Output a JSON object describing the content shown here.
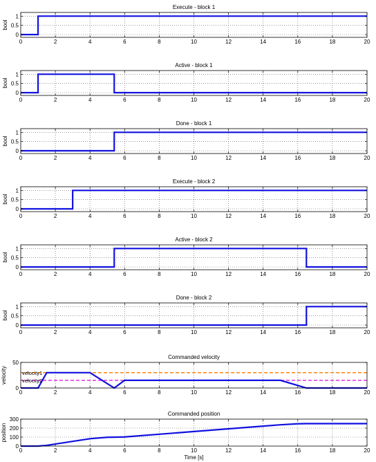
{
  "chart_data": [
    {
      "type": "line",
      "title": "Execute - block 1",
      "ylabel": "bool",
      "xlim": [
        0,
        20
      ],
      "ylim": [
        -0.15,
        1.2
      ],
      "xticks": [
        0,
        2,
        4,
        6,
        8,
        10,
        12,
        14,
        16,
        18,
        20
      ],
      "yticks": [
        0,
        0.5,
        1
      ],
      "ytick_labels": [
        "0",
        "0.5",
        "1"
      ],
      "grid": true,
      "series": [
        {
          "color": "#1010e0",
          "x": [
            0,
            1,
            1,
            20
          ],
          "y": [
            0,
            0,
            1,
            1
          ]
        }
      ]
    },
    {
      "type": "line",
      "title": "Active - block 1",
      "ylabel": "bool",
      "xlim": [
        0,
        20
      ],
      "ylim": [
        -0.15,
        1.2
      ],
      "xticks": [
        0,
        2,
        4,
        6,
        8,
        10,
        12,
        14,
        16,
        18,
        20
      ],
      "yticks": [
        0,
        0.5,
        1
      ],
      "ytick_labels": [
        "0",
        "0.5",
        "1"
      ],
      "grid": true,
      "series": [
        {
          "color": "#1010e0",
          "x": [
            0,
            1,
            1,
            5.4,
            5.4,
            20
          ],
          "y": [
            0,
            0,
            1,
            1,
            0,
            0
          ]
        }
      ]
    },
    {
      "type": "line",
      "title": "Done - block 1",
      "ylabel": "bool",
      "xlim": [
        0,
        20
      ],
      "ylim": [
        -0.15,
        1.2
      ],
      "xticks": [
        0,
        2,
        4,
        6,
        8,
        10,
        12,
        14,
        16,
        18,
        20
      ],
      "yticks": [
        0,
        0.5,
        1
      ],
      "ytick_labels": [
        "0",
        "0.5",
        "1"
      ],
      "grid": true,
      "series": [
        {
          "color": "#1010e0",
          "x": [
            0,
            5.4,
            5.4,
            20
          ],
          "y": [
            0,
            0,
            1,
            1
          ]
        }
      ]
    },
    {
      "type": "line",
      "title": "Execute - block 2",
      "ylabel": "bool",
      "xlim": [
        0,
        20
      ],
      "ylim": [
        -0.15,
        1.2
      ],
      "xticks": [
        0,
        2,
        4,
        6,
        8,
        10,
        12,
        14,
        16,
        18,
        20
      ],
      "yticks": [
        0,
        0.5,
        1
      ],
      "ytick_labels": [
        "0",
        "0.5",
        "1"
      ],
      "grid": true,
      "series": [
        {
          "color": "#1010e0",
          "x": [
            0,
            3,
            3,
            20
          ],
          "y": [
            0,
            0,
            1,
            1
          ]
        }
      ]
    },
    {
      "type": "line",
      "title": "Active - block 2",
      "ylabel": "bool",
      "xlim": [
        0,
        20
      ],
      "ylim": [
        -0.15,
        1.2
      ],
      "xticks": [
        0,
        2,
        4,
        6,
        8,
        10,
        12,
        14,
        16,
        18,
        20
      ],
      "yticks": [
        0,
        0.5,
        1
      ],
      "ytick_labels": [
        "0",
        "0.5",
        "1"
      ],
      "grid": true,
      "series": [
        {
          "color": "#1010e0",
          "x": [
            0,
            5.4,
            5.4,
            16.5,
            16.5,
            20
          ],
          "y": [
            0,
            0,
            1,
            1,
            0,
            0
          ]
        }
      ]
    },
    {
      "type": "line",
      "title": "Done - block 2",
      "ylabel": "bool",
      "xlim": [
        0,
        20
      ],
      "ylim": [
        -0.15,
        1.2
      ],
      "xticks": [
        0,
        2,
        4,
        6,
        8,
        10,
        12,
        14,
        16,
        18,
        20
      ],
      "yticks": [
        0,
        0.5,
        1
      ],
      "ytick_labels": [
        "0",
        "0.5",
        "1"
      ],
      "grid": true,
      "series": [
        {
          "color": "#1010e0",
          "x": [
            0,
            16.5,
            16.5,
            20
          ],
          "y": [
            0,
            0,
            1,
            1
          ]
        }
      ]
    },
    {
      "type": "line",
      "title": "Commanded velocity",
      "ylabel": "velocity",
      "xlim": [
        0,
        20
      ],
      "ylim": [
        0,
        50
      ],
      "xticks": [
        0,
        2,
        4,
        6,
        8,
        10,
        12,
        14,
        16,
        18,
        20
      ],
      "yticks": [
        0,
        50
      ],
      "ytick_labels": [
        "0",
        "50"
      ],
      "grid": true,
      "series": [
        {
          "color": "#1010e0",
          "x": [
            0,
            1,
            1.5,
            4,
            5.4,
            6,
            15,
            16.5,
            20
          ],
          "y": [
            0,
            0,
            30,
            30,
            0,
            15,
            15,
            0,
            0
          ]
        }
      ],
      "references": [
        {
          "label": "velocity1",
          "value": 30,
          "color": "#ff8c1a"
        },
        {
          "label": "velocity2",
          "value": 15,
          "color": "#e040e0"
        }
      ]
    },
    {
      "type": "line",
      "title": "Commanded position",
      "ylabel": "position",
      "xlabel": "Time [s]",
      "xlim": [
        0,
        20
      ],
      "ylim": [
        0,
        300
      ],
      "xticks": [
        0,
        2,
        4,
        6,
        8,
        10,
        12,
        14,
        16,
        18,
        20
      ],
      "yticks": [
        0,
        100,
        200,
        300
      ],
      "ytick_labels": [
        "0",
        "100",
        "200",
        "300"
      ],
      "grid": true,
      "series": [
        {
          "color": "#1010e0",
          "x": [
            0,
            1,
            1.5,
            4,
            5,
            5.4,
            6,
            15,
            16,
            16.5,
            20
          ],
          "y": [
            0,
            0,
            8,
            82,
            98,
            99,
            102,
            237,
            248,
            250,
            250
          ]
        }
      ]
    }
  ]
}
